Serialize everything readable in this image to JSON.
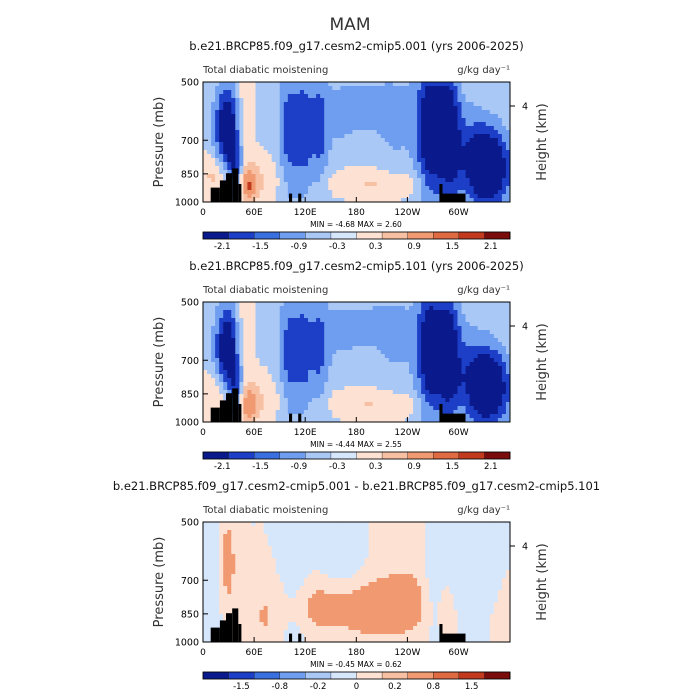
{
  "page_title": "MAM",
  "colorbar_colors": [
    "#0a1a8c",
    "#1d3fc7",
    "#3a6fe0",
    "#6f9ef0",
    "#a9c8f6",
    "#d6e6fb",
    "#fde2d3",
    "#f8c0a2",
    "#f19a72",
    "#e06a42",
    "#c23a1e",
    "#7a0c0c"
  ],
  "panels": [
    {
      "title": "b.e21.BRCP85.f09_g17.cesm2-cmip5.001 (yrs 2006-2025)",
      "left_label": "Total diabatic moistening",
      "right_label": "g/kg day⁻¹",
      "ylabel": "Pressure (mb)",
      "ylabel_right": "Height (km)",
      "yticks": [
        "500",
        "700",
        "850",
        "1000"
      ],
      "yticks_right": [
        "4"
      ],
      "xticks": [
        "0",
        "60E",
        "120E",
        "180",
        "120W",
        "60W"
      ],
      "stats": "MIN =   -4.68   MAX =    2.60",
      "colorbar_labels": [
        "-2.1",
        "-1.5",
        "-0.9",
        "-0.3",
        "0.3",
        "0.9",
        "1.5",
        "2.1"
      ]
    },
    {
      "title": "b.e21.BRCP85.f09_g17.cesm2-cmip5.101 (yrs 2006-2025)",
      "left_label": "Total diabatic moistening",
      "right_label": "g/kg day⁻¹",
      "ylabel": "Pressure (mb)",
      "ylabel_right": "Height (km)",
      "yticks": [
        "500",
        "700",
        "850",
        "1000"
      ],
      "yticks_right": [
        "4"
      ],
      "xticks": [
        "0",
        "60E",
        "120E",
        "180",
        "120W",
        "60W"
      ],
      "stats": "MIN =   -4.44   MAX =    2.55",
      "colorbar_labels": [
        "-2.1",
        "-1.5",
        "-0.9",
        "-0.3",
        "0.3",
        "0.9",
        "1.5",
        "2.1"
      ]
    },
    {
      "title": "b.e21.BRCP85.f09_g17.cesm2-cmip5.001 - b.e21.BRCP85.f09_g17.cesm2-cmip5.101",
      "left_label": "Total diabatic moistening",
      "right_label": "g/kg day⁻¹",
      "ylabel": "Pressure (mb)",
      "ylabel_right": "Height (km)",
      "yticks": [
        "500",
        "700",
        "850",
        "1000"
      ],
      "yticks_right": [
        "4"
      ],
      "xticks": [
        "0",
        "60E",
        "120E",
        "180",
        "120W",
        "60W"
      ],
      "stats": "MIN =   -0.45   MAX =    0.62",
      "colorbar_labels": [
        "-1.5",
        "-0.8",
        "-0.2",
        "0",
        "0.2",
        "0.8",
        "1.5"
      ]
    }
  ],
  "chart_data": [
    {
      "type": "heatmap",
      "title": "b.e21.BRCP85.f09_g17.cesm2-cmip5.001 (yrs 2006-2025)",
      "ylabel": "Pressure (mb)",
      "units": "g/kg day⁻¹",
      "x_ticks": [
        "0",
        "60E",
        "120E",
        "180",
        "120W",
        "60W"
      ],
      "y_ticks": [
        500,
        700,
        850,
        1000
      ],
      "y_scale": "log-pressure",
      "colorbar_levels": [
        -2.1,
        -1.5,
        -0.9,
        -0.3,
        0.3,
        0.9,
        1.5,
        2.1
      ],
      "min": -4.68,
      "max": 2.6,
      "features": [
        {
          "lon": 15,
          "p": 780,
          "value": -2.5
        },
        {
          "lon": 30,
          "p": 900,
          "value": 1.8
        },
        {
          "lon": 100,
          "p": 750,
          "value": -1.3
        },
        {
          "lon": 120,
          "p": 700,
          "value": -1.3
        },
        {
          "lon": 285,
          "p": 700,
          "value": -2.4
        },
        {
          "lon": 335,
          "p": 870,
          "value": -3.0
        },
        {
          "lon": 210,
          "p": 950,
          "value": 0.5
        }
      ]
    },
    {
      "type": "heatmap",
      "title": "b.e21.BRCP85.f09_g17.cesm2-cmip5.101 (yrs 2006-2025)",
      "ylabel": "Pressure (mb)",
      "units": "g/kg day⁻¹",
      "x_ticks": [
        "0",
        "60E",
        "120E",
        "180",
        "120W",
        "60W"
      ],
      "y_ticks": [
        500,
        700,
        850,
        1000
      ],
      "y_scale": "log-pressure",
      "colorbar_levels": [
        -2.1,
        -1.5,
        -0.9,
        -0.3,
        0.3,
        0.9,
        1.5,
        2.1
      ],
      "min": -4.44,
      "max": 2.55,
      "features": [
        {
          "lon": 15,
          "p": 780,
          "value": -2.4
        },
        {
          "lon": 30,
          "p": 900,
          "value": 1.7
        },
        {
          "lon": 100,
          "p": 750,
          "value": -1.3
        },
        {
          "lon": 120,
          "p": 700,
          "value": -1.2
        },
        {
          "lon": 285,
          "p": 700,
          "value": -2.3
        },
        {
          "lon": 335,
          "p": 870,
          "value": -2.8
        },
        {
          "lon": 210,
          "p": 950,
          "value": 0.5
        }
      ]
    },
    {
      "type": "heatmap",
      "title": "b.e21.BRCP85.f09_g17.cesm2-cmip5.001 - b.e21.BRCP85.f09_g17.cesm2-cmip5.101",
      "ylabel": "Pressure (mb)",
      "units": "g/kg day⁻¹",
      "x_ticks": [
        "0",
        "60E",
        "120E",
        "180",
        "120W",
        "60W"
      ],
      "y_ticks": [
        500,
        700,
        850,
        1000
      ],
      "y_scale": "log-pressure",
      "colorbar_levels": [
        -1.5,
        -0.8,
        -0.2,
        0,
        0.2,
        0.8,
        1.5
      ],
      "min": -0.45,
      "max": 0.62,
      "features": [
        {
          "lon": 25,
          "p": 700,
          "value": 0.3
        },
        {
          "lon": 190,
          "p": 880,
          "value": 0.4
        },
        {
          "lon": 140,
          "p": 870,
          "value": 0.25
        },
        {
          "lon": 75,
          "p": 600,
          "value": -0.15
        },
        {
          "lon": 290,
          "p": 650,
          "value": -0.2
        }
      ]
    }
  ]
}
